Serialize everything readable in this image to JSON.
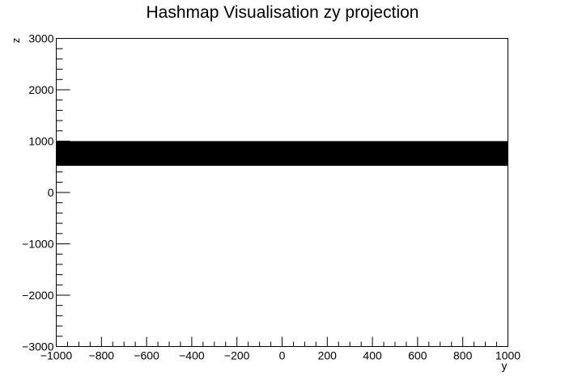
{
  "chart_data": {
    "type": "area",
    "title": "Hashmap Visualisation zy projection",
    "xlabel": "y",
    "ylabel": "z",
    "xlim": [
      -1000,
      1000
    ],
    "ylim": [
      -3000,
      3000
    ],
    "x_ticks": [
      -1000,
      -800,
      -600,
      -400,
      -200,
      0,
      200,
      400,
      600,
      800,
      1000
    ],
    "y_ticks": [
      -3000,
      -2000,
      -1000,
      0,
      1000,
      2000,
      3000
    ],
    "x_tick_labels": [
      "−1000",
      "−800",
      "−600",
      "−400",
      "−200",
      "0",
      "200",
      "400",
      "600",
      "800",
      "1000"
    ],
    "y_tick_labels": [
      "−3000",
      "−2000",
      "−1000",
      "0",
      "1000",
      "2000",
      "3000"
    ],
    "regions": [
      {
        "y_range": [
          -1000,
          1000
        ],
        "z_range": [
          520,
          1000
        ],
        "color": "#000000"
      }
    ],
    "grid": false,
    "legend": "none"
  }
}
